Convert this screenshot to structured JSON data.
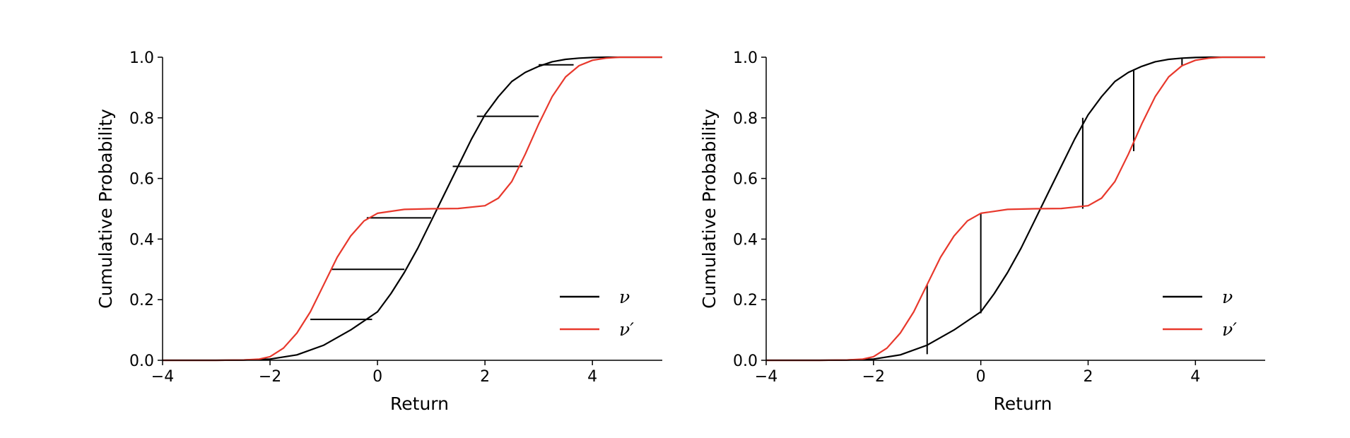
{
  "chart_data": [
    {
      "type": "line",
      "panel": "left",
      "xlabel": "Return",
      "ylabel": "Cumulative Probability",
      "xlim": [
        -4,
        5.3
      ],
      "ylim": [
        0,
        1
      ],
      "xticks": [
        -4,
        -2,
        0,
        2,
        4
      ],
      "xtick_labels": [
        "−4",
        "−2",
        "0",
        "2",
        "4"
      ],
      "yticks": [
        0,
        0.2,
        0.4,
        0.6,
        0.8,
        1.0
      ],
      "ytick_labels": [
        "0.0",
        "0.2",
        "0.4",
        "0.6",
        "0.8",
        "1.0"
      ],
      "grid": false,
      "legend_position": "lower right",
      "series": [
        {
          "name": "ν",
          "color": "#000000",
          "x": [
            -4.0,
            -3.5,
            -3.0,
            -2.5,
            -2.0,
            -1.5,
            -1.0,
            -0.5,
            0.0,
            0.25,
            0.5,
            0.75,
            1.0,
            1.25,
            1.5,
            1.75,
            2.0,
            2.25,
            2.5,
            2.75,
            3.0,
            3.25,
            3.5,
            3.75,
            4.0,
            4.25,
            4.5,
            5.0,
            5.3
          ],
          "y": [
            0.0,
            0.0,
            0.0,
            0.001,
            0.004,
            0.018,
            0.05,
            0.1,
            0.16,
            0.22,
            0.29,
            0.37,
            0.46,
            0.55,
            0.64,
            0.73,
            0.81,
            0.87,
            0.92,
            0.95,
            0.97,
            0.985,
            0.993,
            0.997,
            0.999,
            1.0,
            1.0,
            1.0,
            1.0
          ]
        },
        {
          "name": "ν′",
          "color": "#e8382c",
          "x": [
            -4.0,
            -3.0,
            -2.5,
            -2.2,
            -2.0,
            -1.75,
            -1.5,
            -1.25,
            -1.0,
            -0.75,
            -0.5,
            -0.25,
            0.0,
            0.5,
            1.0,
            1.5,
            2.0,
            2.25,
            2.5,
            2.75,
            3.0,
            3.25,
            3.5,
            3.75,
            4.0,
            4.25,
            4.5,
            5.0,
            5.3
          ],
          "y": [
            0.0,
            0.0,
            0.001,
            0.004,
            0.012,
            0.04,
            0.09,
            0.16,
            0.25,
            0.34,
            0.41,
            0.46,
            0.485,
            0.498,
            0.5,
            0.501,
            0.51,
            0.535,
            0.59,
            0.68,
            0.78,
            0.87,
            0.935,
            0.972,
            0.99,
            0.997,
            1.0,
            1.0,
            1.0
          ]
        }
      ],
      "connectors": [
        {
          "x1": -1.25,
          "x2": -0.1,
          "y1": 0.135,
          "y2": 0.135
        },
        {
          "x1": -0.85,
          "x2": 0.5,
          "y1": 0.3,
          "y2": 0.3
        },
        {
          "x1": -0.2,
          "x2": 1.0,
          "y1": 0.47,
          "y2": 0.47
        },
        {
          "x1": 1.4,
          "x2": 2.7,
          "y1": 0.64,
          "y2": 0.64
        },
        {
          "x1": 1.85,
          "x2": 3.0,
          "y1": 0.805,
          "y2": 0.805
        },
        {
          "x1": 3.0,
          "x2": 3.65,
          "y1": 0.975,
          "y2": 0.975
        }
      ]
    },
    {
      "type": "line",
      "panel": "right",
      "xlabel": "Return",
      "ylabel": "Cumulative Probability",
      "xlim": [
        -4,
        5.3
      ],
      "ylim": [
        0,
        1
      ],
      "xticks": [
        -4,
        -2,
        0,
        2,
        4
      ],
      "xtick_labels": [
        "−4",
        "−2",
        "0",
        "2",
        "4"
      ],
      "yticks": [
        0,
        0.2,
        0.4,
        0.6,
        0.8,
        1.0
      ],
      "ytick_labels": [
        "0.0",
        "0.2",
        "0.4",
        "0.6",
        "0.8",
        "1.0"
      ],
      "grid": false,
      "legend_position": "lower right",
      "series": [
        {
          "name": "ν",
          "color": "#000000",
          "x": [
            -4.0,
            -3.5,
            -3.0,
            -2.5,
            -2.0,
            -1.5,
            -1.0,
            -0.5,
            0.0,
            0.25,
            0.5,
            0.75,
            1.0,
            1.25,
            1.5,
            1.75,
            2.0,
            2.25,
            2.5,
            2.75,
            3.0,
            3.25,
            3.5,
            3.75,
            4.0,
            4.25,
            4.5,
            5.0,
            5.3
          ],
          "y": [
            0.0,
            0.0,
            0.0,
            0.001,
            0.004,
            0.018,
            0.05,
            0.1,
            0.16,
            0.22,
            0.29,
            0.37,
            0.46,
            0.55,
            0.64,
            0.73,
            0.81,
            0.87,
            0.92,
            0.95,
            0.97,
            0.985,
            0.993,
            0.997,
            0.999,
            1.0,
            1.0,
            1.0,
            1.0
          ]
        },
        {
          "name": "ν′",
          "color": "#e8382c",
          "x": [
            -4.0,
            -3.0,
            -2.5,
            -2.2,
            -2.0,
            -1.75,
            -1.5,
            -1.25,
            -1.0,
            -0.75,
            -0.5,
            -0.25,
            0.0,
            0.5,
            1.0,
            1.5,
            2.0,
            2.25,
            2.5,
            2.75,
            3.0,
            3.25,
            3.5,
            3.75,
            4.0,
            4.25,
            4.5,
            5.0,
            5.3
          ],
          "y": [
            0.0,
            0.0,
            0.001,
            0.004,
            0.012,
            0.04,
            0.09,
            0.16,
            0.25,
            0.34,
            0.41,
            0.46,
            0.485,
            0.498,
            0.5,
            0.501,
            0.51,
            0.535,
            0.59,
            0.68,
            0.78,
            0.87,
            0.935,
            0.972,
            0.99,
            0.997,
            1.0,
            1.0,
            1.0
          ]
        }
      ],
      "connectors": [
        {
          "x1": -1.0,
          "x2": -1.0,
          "y1": 0.02,
          "y2": 0.25
        },
        {
          "x1": 0.0,
          "x2": 0.0,
          "y1": 0.155,
          "y2": 0.485
        },
        {
          "x1": 1.9,
          "x2": 1.9,
          "y1": 0.5,
          "y2": 0.8
        },
        {
          "x1": 2.85,
          "x2": 2.85,
          "y1": 0.69,
          "y2": 0.96
        },
        {
          "x1": 3.75,
          "x2": 3.75,
          "y1": 0.97,
          "y2": 0.995
        }
      ]
    }
  ]
}
